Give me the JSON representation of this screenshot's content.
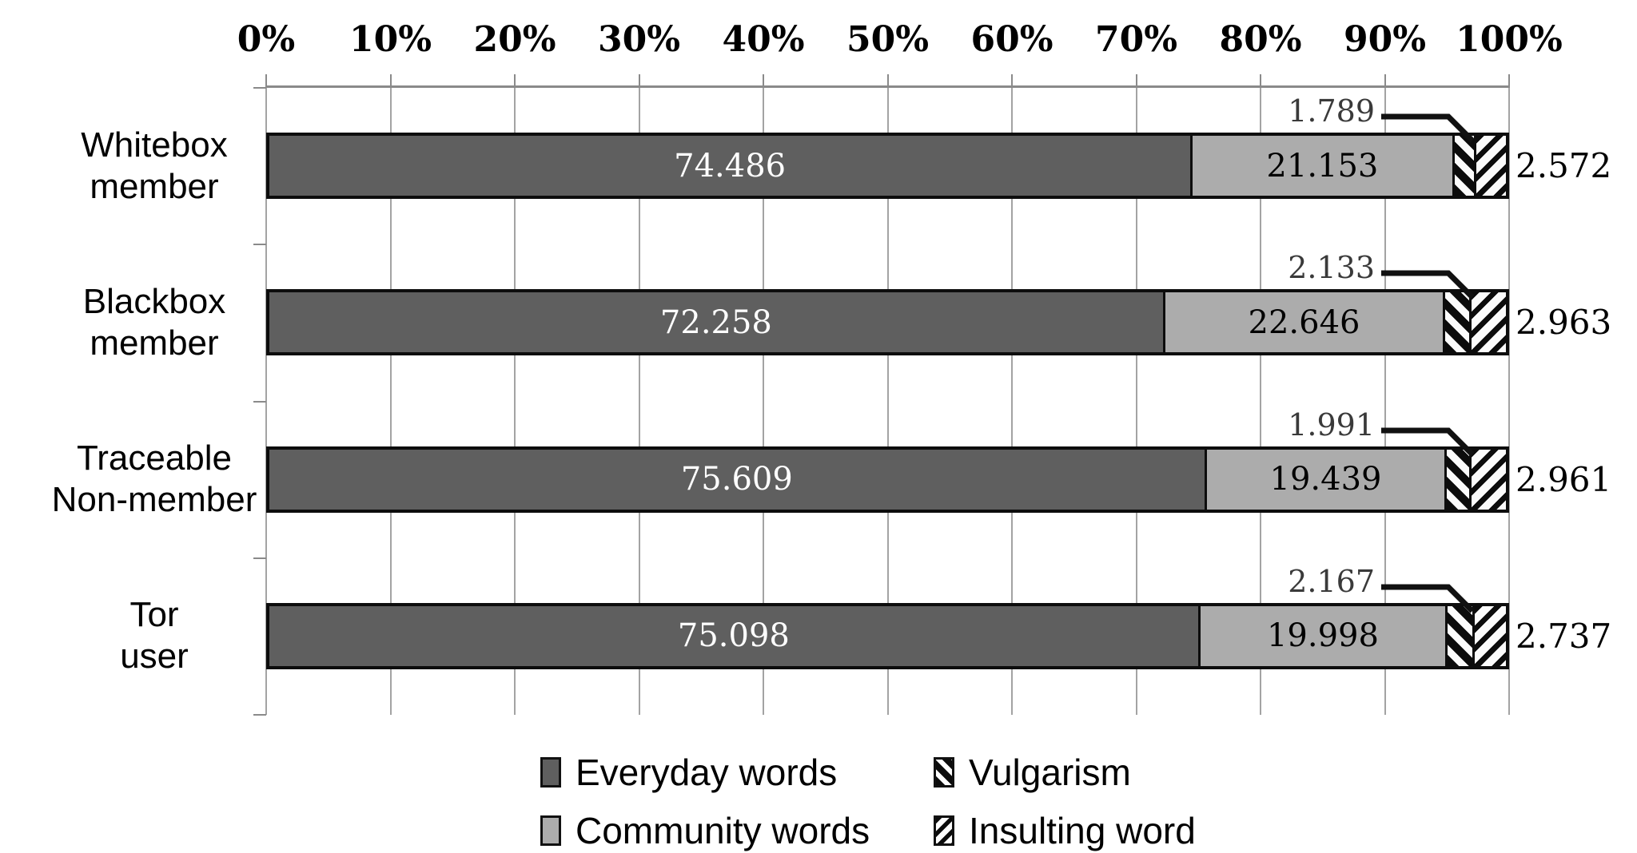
{
  "chart_data": {
    "type": "bar",
    "stacked": true,
    "orientation": "horizontal",
    "title": "",
    "x_axis": {
      "position": "top",
      "min": 0,
      "max": 100,
      "tick_step": 10,
      "tick_labels": [
        "0%",
        "10%",
        "20%",
        "30%",
        "40%",
        "50%",
        "60%",
        "70%",
        "80%",
        "90%",
        "100%"
      ]
    },
    "gridlines": {
      "vertical": true,
      "horizontal": false
    },
    "categories": [
      {
        "name": "Whitebox member",
        "lines": [
          "Whitebox",
          "member"
        ]
      },
      {
        "name": "Blackbox member",
        "lines": [
          "Blackbox",
          "member"
        ]
      },
      {
        "name": "Traceable Non-member",
        "lines": [
          "Traceable",
          "Non-member"
        ]
      },
      {
        "name": "Tor user",
        "lines": [
          "Tor",
          "user"
        ]
      }
    ],
    "series": [
      {
        "name": "Everyday words",
        "swatch": "dark-gray",
        "values": [
          74.486,
          72.258,
          75.609,
          75.098
        ],
        "value_labels": [
          "74.486",
          "72.258",
          "75.609",
          "75.098"
        ],
        "label_placement": "inside"
      },
      {
        "name": "Community words",
        "swatch": "light-gray",
        "values": [
          21.153,
          22.646,
          19.439,
          19.998
        ],
        "value_labels": [
          "21.153",
          "22.646",
          "19.439",
          "19.998"
        ],
        "label_placement": "inside"
      },
      {
        "name": "Vulgarism",
        "swatch": "black-backslash-stripes",
        "values": [
          1.789,
          2.133,
          1.991,
          2.167
        ],
        "value_labels": [
          "1.789",
          "2.133",
          "1.991",
          "2.167"
        ],
        "label_placement": "callout-above"
      },
      {
        "name": "Insulting word",
        "swatch": "black-forwardslash-stripes",
        "values": [
          2.572,
          2.963,
          2.961,
          2.737
        ],
        "value_labels": [
          "2.572",
          "2.963",
          "2.961",
          "2.737"
        ],
        "label_placement": "right-of-bar"
      }
    ],
    "legend": {
      "position": "bottom",
      "columns": 2,
      "entries": [
        {
          "label": "Everyday words",
          "swatch": "dark-gray"
        },
        {
          "label": "Vulgarism",
          "swatch": "black-backslash-stripes"
        },
        {
          "label": "Community words",
          "swatch": "light-gray"
        },
        {
          "label": "Insulting word",
          "swatch": "black-forwardslash-stripes"
        }
      ]
    }
  },
  "colors": {
    "background": "#ffffff",
    "everyday_fill": "#5f5f5f",
    "community_fill": "#acacac",
    "bar_border": "#0d0d0d",
    "gridline": "#a3a3a3",
    "axis_line": "#8a8a8a",
    "value_label_on_dark": "#ffffff",
    "value_label_on_light": "#000000",
    "callout_line": "#111111"
  }
}
